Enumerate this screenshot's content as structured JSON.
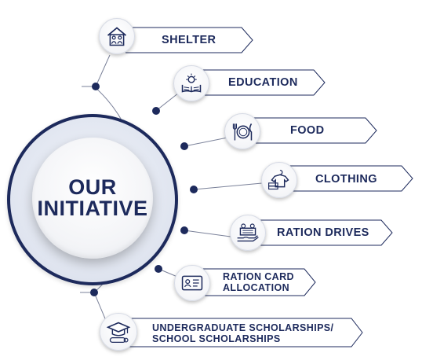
{
  "hub": {
    "line1": "OUR",
    "line2": "INITIATIVE"
  },
  "items": [
    {
      "label": "SHELTER",
      "icon": "house-family-icon"
    },
    {
      "label": "EDUCATION",
      "icon": "book-lightbulb-icon"
    },
    {
      "label": "FOOD",
      "icon": "plate-cutlery-icon"
    },
    {
      "label": "CLOTHING",
      "icon": "shirt-hanger-icon"
    },
    {
      "label": "RATION DRIVES",
      "icon": "ration-basket-icon"
    },
    {
      "label": "RATION CARD",
      "label2": "ALLOCATION",
      "icon": "id-card-icon"
    },
    {
      "label": "UNDERGRADUATE SCHOLARSHIPS/",
      "label2": "SCHOOL SCHOLARSHIPS",
      "icon": "graduation-cap-icon"
    }
  ],
  "colors": {
    "navy": "#1d2a5c",
    "outline": "#1d2a5c"
  }
}
